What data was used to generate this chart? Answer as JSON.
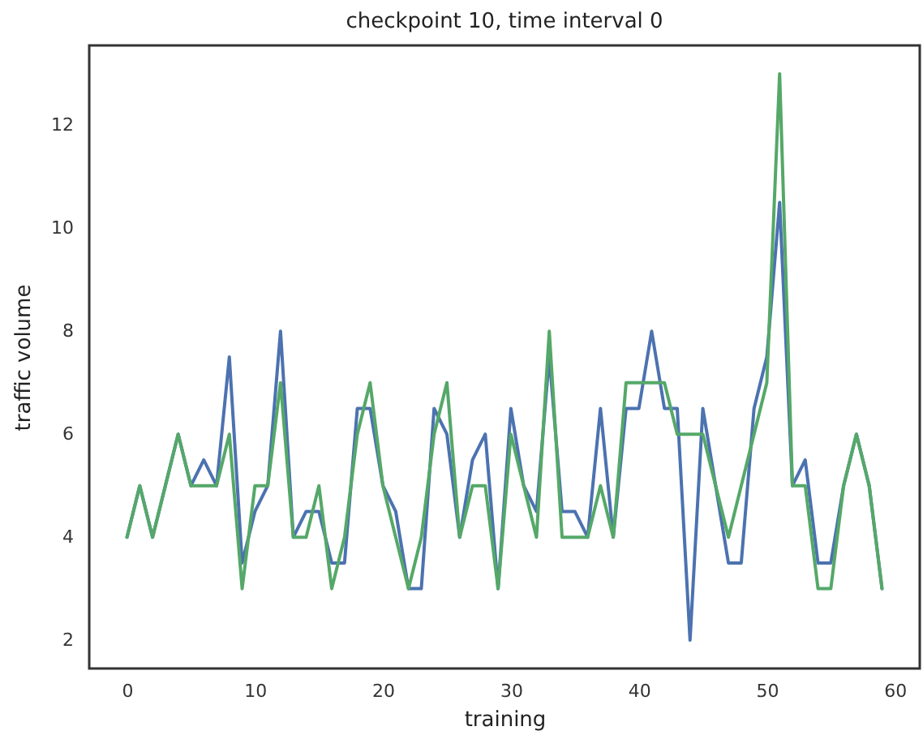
{
  "chart_data": {
    "type": "line",
    "title": "checkpoint 10, time interval 0",
    "xlabel": "training",
    "ylabel": "traffic volume",
    "x": [
      0,
      1,
      2,
      3,
      4,
      5,
      6,
      7,
      8,
      9,
      10,
      11,
      12,
      13,
      14,
      15,
      16,
      17,
      18,
      19,
      20,
      21,
      22,
      23,
      24,
      25,
      26,
      27,
      28,
      29,
      30,
      31,
      32,
      33,
      34,
      35,
      36,
      37,
      38,
      39,
      40,
      41,
      42,
      43,
      44,
      45,
      46,
      47,
      48,
      49,
      50,
      51,
      52,
      53,
      54,
      55,
      56,
      57,
      58,
      59
    ],
    "series": [
      {
        "color": "#4c72b0",
        "values": [
          4,
          5,
          4,
          5,
          6,
          5,
          5.5,
          5,
          7.5,
          3.5,
          4.5,
          5,
          8,
          4,
          4.5,
          4.5,
          3.5,
          3.5,
          6.5,
          6.5,
          5,
          4.5,
          3,
          3,
          6.5,
          6,
          4,
          5.5,
          6,
          3,
          6.5,
          5,
          4.5,
          7.5,
          4.5,
          4.5,
          4,
          6.5,
          4,
          6.5,
          6.5,
          8,
          6.5,
          6.5,
          2,
          6.5,
          5,
          3.5,
          3.5,
          6.5,
          7.5,
          10.5,
          5,
          5.5,
          3.5,
          3.5,
          5,
          6,
          5,
          3
        ]
      },
      {
        "color": "#55a868",
        "values": [
          4,
          5,
          4,
          5,
          6,
          5,
          5,
          5,
          6,
          3,
          5,
          5,
          7,
          4,
          4,
          5,
          3,
          4,
          6,
          7,
          5,
          4,
          3,
          4,
          6,
          7,
          4,
          5,
          5,
          3,
          6,
          5,
          4,
          8,
          4,
          4,
          4,
          5,
          4,
          7,
          7,
          7,
          7,
          6,
          6,
          6,
          5,
          4,
          5,
          6,
          7,
          13,
          5,
          5,
          3,
          3,
          5,
          6,
          5,
          3
        ]
      }
    ],
    "xlim": [
      -2.95,
      61.95
    ],
    "ylim": [
      1.45,
      13.55
    ],
    "xticks": [
      0,
      10,
      20,
      30,
      40,
      50,
      60
    ],
    "yticks": [
      2,
      4,
      6,
      8,
      10,
      12
    ],
    "grid": false,
    "line_style": "solid",
    "marker": "none"
  }
}
